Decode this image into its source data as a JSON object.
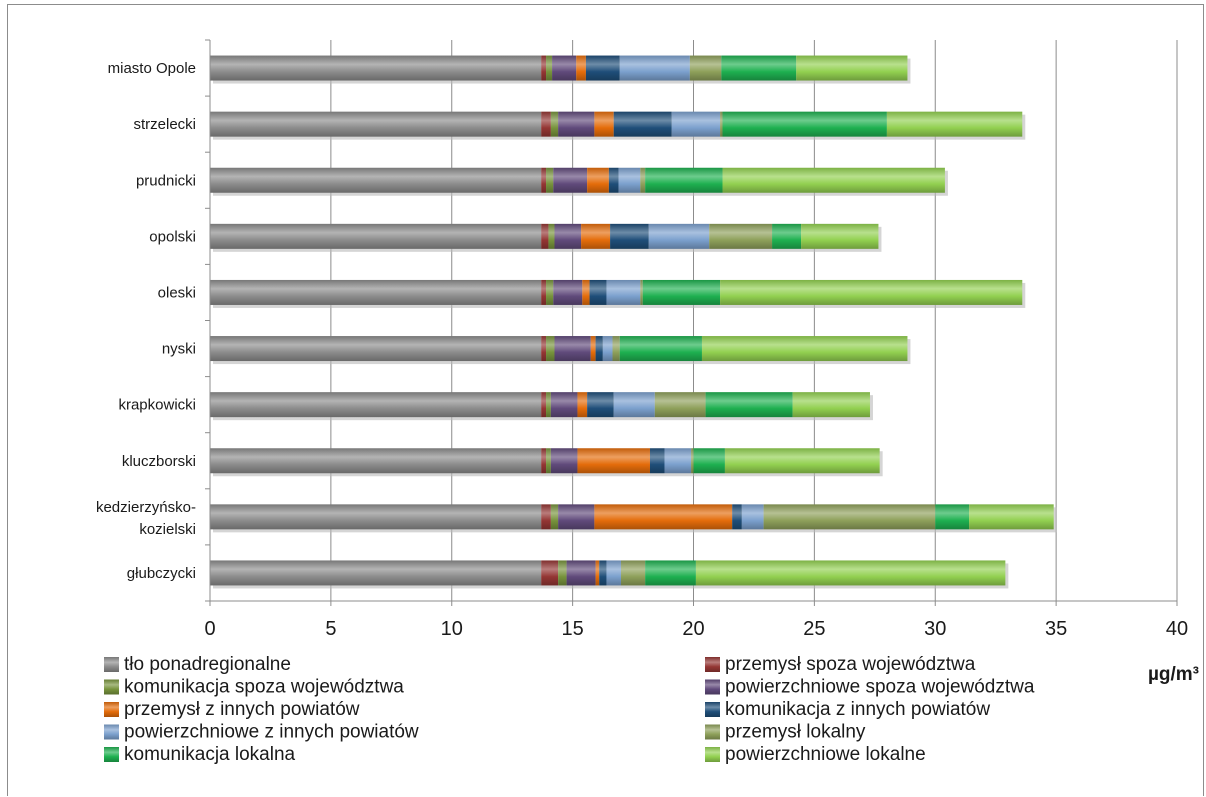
{
  "chart_data": {
    "type": "bar",
    "orientation": "horizontal",
    "stacked": true,
    "categories": [
      "miasto Opole",
      "strzelecki",
      "prudnicki",
      "opolski",
      "oleski",
      "nyski",
      "krapkowicki",
      "kluczborski",
      "kedzierzyńsko-kozielski",
      "głubczycki"
    ],
    "xlim": [
      0,
      40
    ],
    "xticks": [
      0,
      5,
      10,
      15,
      20,
      25,
      30,
      35,
      40
    ],
    "unit": "µg/m³",
    "grid": true,
    "legend_position": "bottom",
    "series": [
      {
        "name": "tło ponadregionalne",
        "color": "#8c8c8c",
        "values": [
          13.7,
          13.7,
          13.7,
          13.7,
          13.7,
          13.7,
          13.7,
          13.7,
          13.7,
          13.7
        ]
      },
      {
        "name": "przemysł spoza województwa",
        "color": "#943634",
        "values": [
          0.2,
          0.4,
          0.2,
          0.3,
          0.2,
          0.2,
          0.2,
          0.2,
          0.4,
          0.7
        ]
      },
      {
        "name": "komunikacja spoza województwa",
        "color": "#77933c",
        "values": [
          0.25,
          0.3,
          0.3,
          0.25,
          0.3,
          0.35,
          0.2,
          0.2,
          0.3,
          0.35
        ]
      },
      {
        "name": "powierzchniowe spoza województwa",
        "color": "#604a7b",
        "values": [
          1.0,
          1.5,
          1.4,
          1.1,
          1.2,
          1.5,
          1.1,
          1.1,
          1.5,
          1.2
        ]
      },
      {
        "name": "przemysł z innych powiatów",
        "color": "#e46c0a",
        "values": [
          0.4,
          0.8,
          0.9,
          1.2,
          0.3,
          0.2,
          0.4,
          3.0,
          5.7,
          0.15
        ]
      },
      {
        "name": "komunikacja z innych powiatów",
        "color": "#1f4e79",
        "values": [
          1.4,
          2.4,
          0.4,
          1.6,
          0.7,
          0.3,
          1.1,
          0.6,
          0.4,
          0.3
        ]
      },
      {
        "name": "powierzchniowe z innych powiatów",
        "color": "#7ba0cd",
        "values": [
          2.9,
          2.0,
          0.9,
          2.5,
          1.4,
          0.4,
          1.7,
          1.1,
          0.9,
          0.6
        ]
      },
      {
        "name": "przemysł lokalny",
        "color": "#8ea05a",
        "values": [
          1.3,
          0.1,
          0.2,
          2.6,
          0.1,
          0.3,
          2.1,
          0.1,
          7.1,
          1.0
        ]
      },
      {
        "name": "komunikacja lokalna",
        "color": "#1eb050",
        "values": [
          3.1,
          6.8,
          3.2,
          1.2,
          3.2,
          3.4,
          3.6,
          1.3,
          1.4,
          2.1
        ]
      },
      {
        "name": "powierzchniowe lokalne",
        "color": "#92d050",
        "values": [
          4.6,
          5.6,
          9.2,
          3.2,
          12.5,
          8.5,
          3.2,
          6.4,
          3.5,
          12.8
        ]
      }
    ]
  }
}
